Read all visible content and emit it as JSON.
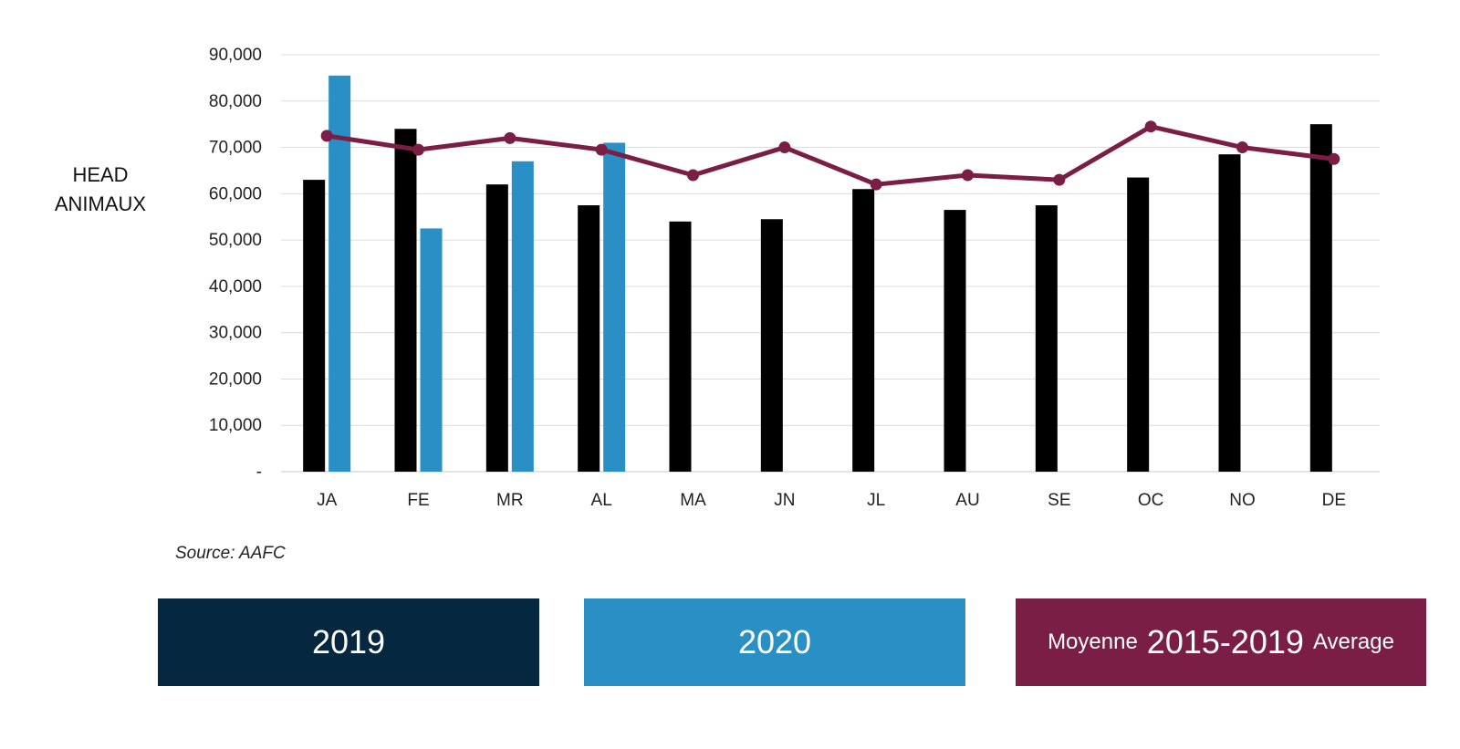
{
  "chart_data": {
    "type": "bar",
    "categories": [
      "JA",
      "FE",
      "MR",
      "AL",
      "MA",
      "JN",
      "JL",
      "AU",
      "SE",
      "OC",
      "NO",
      "DE"
    ],
    "series": [
      {
        "name": "2019",
        "kind": "bar",
        "color": "#000000",
        "values": [
          63000,
          74000,
          62000,
          57500,
          54000,
          54500,
          61000,
          56500,
          57500,
          63500,
          68500,
          75000
        ]
      },
      {
        "name": "2020",
        "kind": "bar",
        "color": "#2a8fc4",
        "values": [
          85500,
          52500,
          67000,
          71000,
          null,
          null,
          null,
          null,
          null,
          null,
          null,
          null
        ]
      },
      {
        "name": "Moyenne 2015-2019 Average",
        "kind": "line",
        "color": "#7a1e45",
        "values": [
          72500,
          69500,
          72000,
          69500,
          64000,
          70000,
          62000,
          64000,
          63000,
          74500,
          70000,
          67500
        ]
      }
    ],
    "ylabel_lines": [
      "HEAD",
      "ANIMAUX"
    ],
    "ylim": [
      0,
      90000
    ],
    "yticks": [
      0,
      10000,
      20000,
      30000,
      40000,
      50000,
      60000,
      70000,
      80000,
      90000
    ],
    "ytick_labels": [
      "-",
      "10,000",
      "20,000",
      "30,000",
      "40,000",
      "50,000",
      "60,000",
      "70,000",
      "80,000",
      "90,000"
    ],
    "grid": true,
    "source": "Source: AAFC",
    "legend_placement": "bottom"
  },
  "legend": {
    "item_2019": "2019",
    "item_2020": "2020",
    "avg_prefix": "Moyenne",
    "avg_range": "2015-2019",
    "avg_suffix": "Average"
  },
  "colors": {
    "legend_2019_bg": "#05273f",
    "legend_2020_bg": "#2a8fc4",
    "legend_avg_bg": "#7a1e45"
  }
}
